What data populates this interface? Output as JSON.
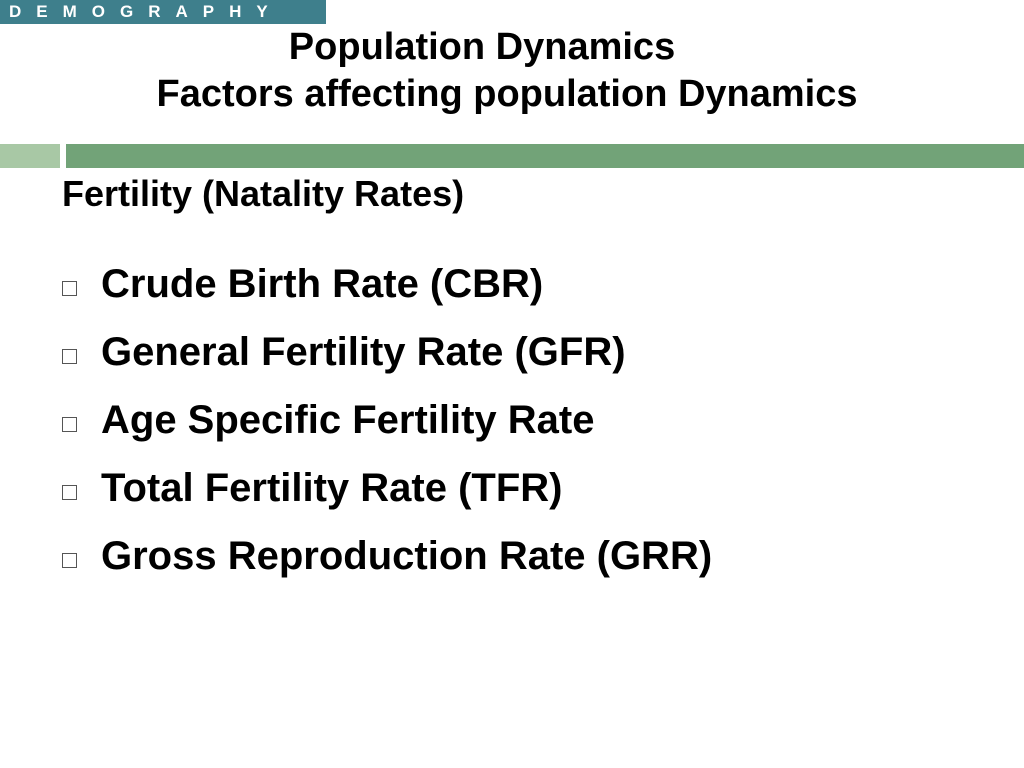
{
  "header": {
    "brand_tag": "DEMOGRAPHY"
  },
  "title": {
    "line1": "Population Dynamics",
    "line2": "Factors affecting population Dynamics"
  },
  "section": {
    "heading": "Fertility (Natality Rates)"
  },
  "bullets": [
    {
      "label": "Crude Birth Rate (CBR)",
      "icon": "hollow-square-bullet-icon"
    },
    {
      "label": "General Fertility Rate (GFR)",
      "icon": "hollow-square-bullet-icon"
    },
    {
      "label": "Age Specific Fertility Rate",
      "icon": "hollow-square-bullet-icon"
    },
    {
      "label": "Total Fertility Rate (TFR)",
      "icon": "hollow-square-bullet-icon"
    },
    {
      "label": "Gross Reproduction Rate (GRR)",
      "icon": "hollow-square-bullet-icon"
    }
  ],
  "colors": {
    "brand_tag_bg": "#3e7f8c",
    "accent_bar_light": "#a8c8a5",
    "accent_bar": "#72a378",
    "text": "#000000"
  }
}
